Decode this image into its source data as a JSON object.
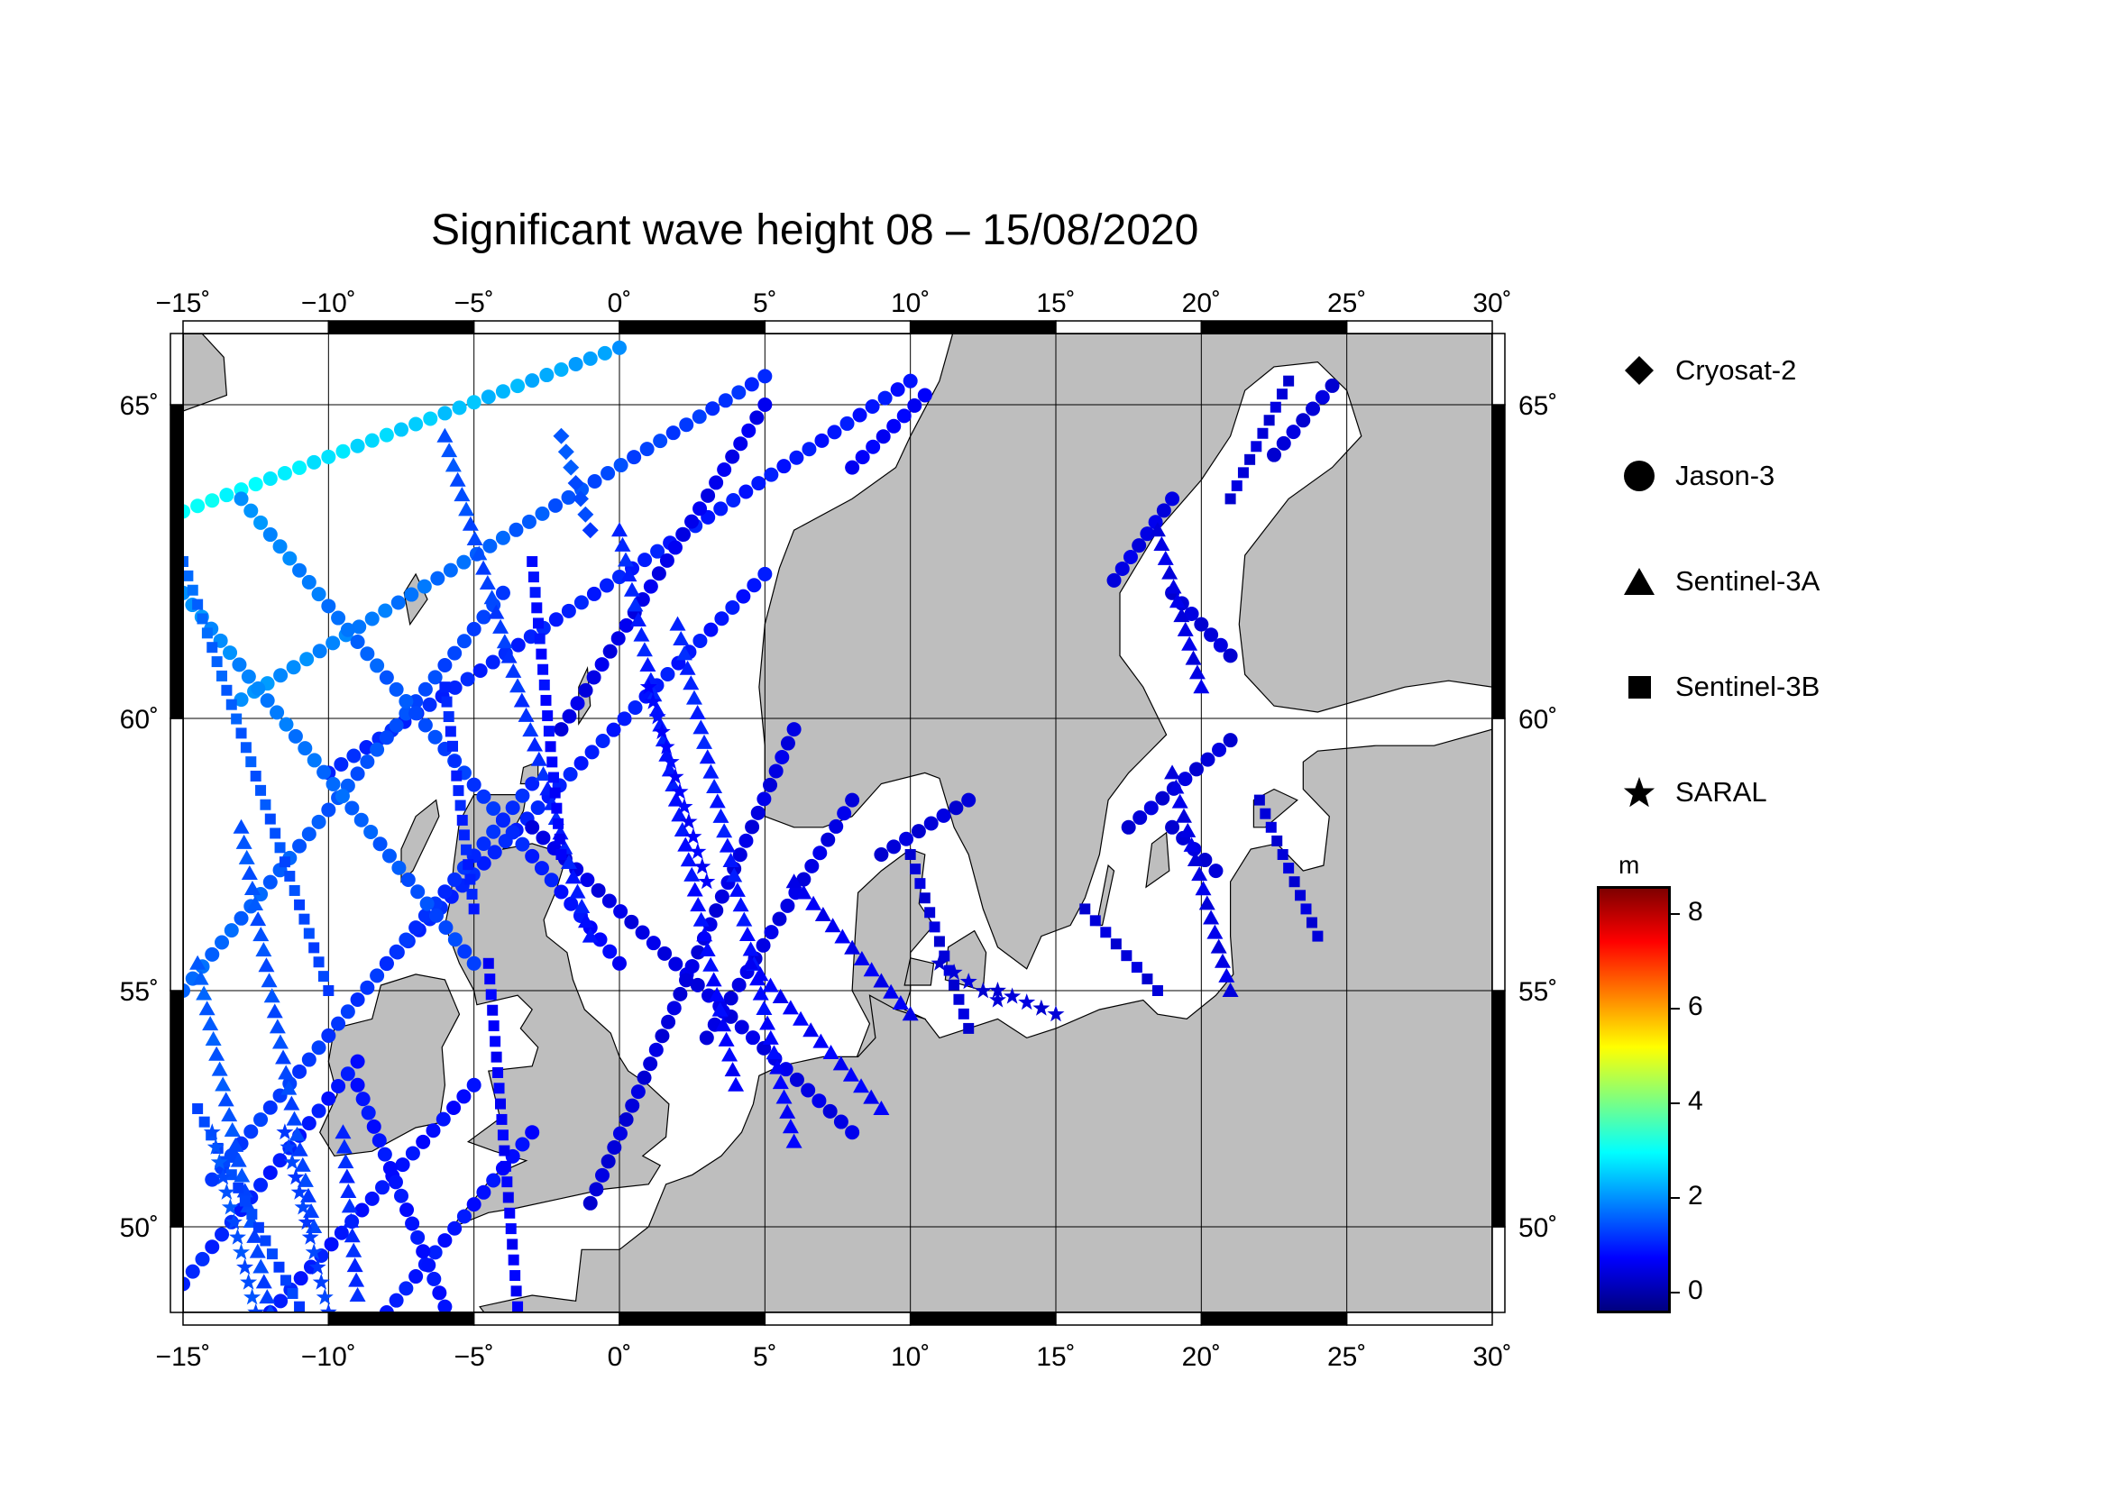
{
  "title": "Significant wave height 08 – 15/08/2020",
  "map": {
    "lon_ticks": [
      -15,
      -10,
      -5,
      0,
      5,
      10,
      15,
      20,
      25,
      30
    ],
    "lat_ticks": [
      50,
      55,
      60,
      65
    ],
    "lon_labels": [
      "−15˚",
      "−10˚",
      "−5˚",
      "0˚",
      "5˚",
      "10˚",
      "15˚",
      "20˚",
      "25˚",
      "30˚"
    ],
    "lat_labels": [
      "50˚",
      "55˚",
      "60˚",
      "65˚"
    ],
    "lon_range": [
      -15,
      30
    ],
    "lat_range": [
      48.5,
      66.5
    ],
    "land_color": "#bebebe",
    "sea_color": "#ffffff"
  },
  "legend": {
    "items": [
      {
        "label": "Cryosat-2",
        "symbol": "diamond"
      },
      {
        "label": "Jason-3",
        "symbol": "circle"
      },
      {
        "label": "Sentinel-3A",
        "symbol": "triangle"
      },
      {
        "label": "Sentinel-3B",
        "symbol": "square"
      },
      {
        "label": "SARAL",
        "symbol": "star"
      }
    ]
  },
  "colorbar": {
    "unit": "m",
    "ticks": [
      "8",
      "6",
      "4",
      "2",
      "0"
    ],
    "range": [
      -0.5,
      8.6
    ],
    "colors": [
      "#00007f",
      "#0000ff",
      "#007fff",
      "#00ffff",
      "#7fff7f",
      "#ffff00",
      "#ff7f00",
      "#ff0000",
      "#7f0000"
    ]
  },
  "chart_data": {
    "type": "scatter",
    "title": "Significant wave height 08 – 15/08/2020",
    "xlabel": "",
    "ylabel": "",
    "xlim": [
      -15,
      30
    ],
    "ylim": [
      48.5,
      66.5
    ],
    "color_scale": {
      "unit": "m",
      "min": 0,
      "max": 8
    },
    "series": [
      {
        "name": "Jason-3",
        "marker": "circle",
        "tracks": [
          {
            "start": [
              -15,
              63.3
            ],
            "end": [
              0,
              66.2
            ],
            "hs_start": 3.0,
            "hs_end": 2.0
          },
          {
            "start": [
              -13,
              60.3
            ],
            "end": [
              5,
              65.6
            ],
            "hs_start": 2.0,
            "hs_end": 1.0
          },
          {
            "start": [
              -10,
              59.0
            ],
            "end": [
              10,
              65.5
            ],
            "hs_start": 1.0,
            "hs_end": 0.8
          },
          {
            "start": [
              -8,
              55.5
            ],
            "end": [
              5,
              62.3
            ],
            "hs_start": 1.0,
            "hs_end": 0.8
          },
          {
            "start": [
              -15,
              55.0
            ],
            "end": [
              -4,
              62.0
            ],
            "hs_start": 1.6,
            "hs_end": 1.2
          },
          {
            "start": [
              -14,
              51.0
            ],
            "end": [
              -3,
              58.8
            ],
            "hs_start": 1.2,
            "hs_end": 1.0
          },
          {
            "start": [
              -15,
              62.0
            ],
            "end": [
              -5,
              55.5
            ],
            "hs_start": 2.0,
            "hs_end": 1.2
          },
          {
            "start": [
              -13,
              63.5
            ],
            "end": [
              0,
              55.5
            ],
            "hs_start": 2.0,
            "hs_end": 0.6
          },
          {
            "start": [
              -3,
              58.0
            ],
            "end": [
              8,
              52.0
            ],
            "hs_start": 0.4,
            "hs_end": 0.4
          },
          {
            "start": [
              -2,
              59.8
            ],
            "end": [
              5,
              65.0
            ],
            "hs_start": 0.4,
            "hs_end": 0.5
          },
          {
            "start": [
              3,
              54.0
            ],
            "end": [
              8,
              58.5
            ],
            "hs_start": 0.4,
            "hs_end": 0.4
          },
          {
            "start": [
              -1,
              50.5
            ],
            "end": [
              6,
              59.8
            ],
            "hs_start": 0.3,
            "hs_end": 0.4
          },
          {
            "start": [
              -15,
              49.0
            ],
            "end": [
              -9,
              53.5
            ],
            "hs_start": 1.0,
            "hs_end": 0.8
          },
          {
            "start": [
              -12,
              48.5
            ],
            "end": [
              -5,
              53.0
            ],
            "hs_start": 0.9,
            "hs_end": 0.7
          },
          {
            "start": [
              -8,
              48.5
            ],
            "end": [
              -3,
              52.0
            ],
            "hs_start": 0.9,
            "hs_end": 0.7
          },
          {
            "start": [
              -9,
              53.0
            ],
            "end": [
              -6,
              48.6
            ],
            "hs_start": 0.8,
            "hs_end": 0.8
          },
          {
            "start": [
              9,
              57.5
            ],
            "end": [
              12,
              58.5
            ],
            "hs_start": 0.3,
            "hs_end": 0.3
          },
          {
            "start": [
              17,
              62.2
            ],
            "end": [
              19,
              63.5
            ],
            "hs_start": 0.4,
            "hs_end": 0.4
          },
          {
            "start": [
              19,
              62.0
            ],
            "end": [
              21,
              61.0
            ],
            "hs_start": 0.3,
            "hs_end": 0.3
          },
          {
            "start": [
              22.5,
              64.2
            ],
            "end": [
              24.5,
              65.4
            ],
            "hs_start": 0.3,
            "hs_end": 0.3
          },
          {
            "start": [
              17.5,
              58.0
            ],
            "end": [
              21,
              59.6
            ],
            "hs_start": 0.3,
            "hs_end": 0.3
          },
          {
            "start": [
              19,
              58.0
            ],
            "end": [
              20.5,
              57.2
            ],
            "hs_start": 0.3,
            "hs_end": 0.3
          },
          {
            "start": [
              8,
              64.0
            ],
            "end": [
              10.5,
              65.2
            ],
            "hs_start": 0.6,
            "hs_end": 0.6
          }
        ]
      },
      {
        "name": "Sentinel-3A",
        "marker": "triangle",
        "tracks": [
          {
            "start": [
              -14.5,
              55.5
            ],
            "end": [
              -12,
              48.5
            ],
            "hs_start": 1.5,
            "hs_end": 1.2
          },
          {
            "start": [
              -13,
              58.0
            ],
            "end": [
              -10.5,
              50.0
            ],
            "hs_start": 1.4,
            "hs_end": 1.2
          },
          {
            "start": [
              -6,
              64.5
            ],
            "end": [
              -1,
              56.0
            ],
            "hs_start": 1.4,
            "hs_end": 0.8
          },
          {
            "start": [
              0,
              63.0
            ],
            "end": [
              4,
              53.0
            ],
            "hs_start": 1.0,
            "hs_end": 0.6
          },
          {
            "start": [
              2,
              61.5
            ],
            "end": [
              6,
              51.8
            ],
            "hs_start": 1.0,
            "hs_end": 0.6
          },
          {
            "start": [
              4.5,
              55.5
            ],
            "end": [
              9,
              52.5
            ],
            "hs_start": 0.6,
            "hs_end": 0.6
          },
          {
            "start": [
              6,
              57.0
            ],
            "end": [
              10,
              54.5
            ],
            "hs_start": 0.5,
            "hs_end": 0.5
          },
          {
            "start": [
              -9.5,
              52.0
            ],
            "end": [
              -9,
              48.8
            ],
            "hs_start": 1.0,
            "hs_end": 1.0
          },
          {
            "start": [
              18.5,
              63.0
            ],
            "end": [
              20,
              60.5
            ],
            "hs_start": 0.4,
            "hs_end": 0.4
          },
          {
            "start": [
              19,
              59.0
            ],
            "end": [
              21,
              55.0
            ],
            "hs_start": 0.4,
            "hs_end": 0.4
          }
        ]
      },
      {
        "name": "Sentinel-3B",
        "marker": "square",
        "tracks": [
          {
            "start": [
              -15,
              62.5
            ],
            "end": [
              -10,
              55.0
            ],
            "hs_start": 1.6,
            "hs_end": 1.2
          },
          {
            "start": [
              -14.5,
              52.5
            ],
            "end": [
              -11,
              48.6
            ],
            "hs_start": 1.3,
            "hs_end": 1.2
          },
          {
            "start": [
              -4.5,
              55.5
            ],
            "end": [
              -3.5,
              48.6
            ],
            "hs_start": 0.6,
            "hs_end": 0.6
          },
          {
            "start": [
              -3,
              62.5
            ],
            "end": [
              -2,
              57.5
            ],
            "hs_start": 0.8,
            "hs_end": 0.6
          },
          {
            "start": [
              -6,
              60.5
            ],
            "end": [
              -5,
              56.5
            ],
            "hs_start": 1.0,
            "hs_end": 0.9
          },
          {
            "start": [
              10,
              57.5
            ],
            "end": [
              12,
              54.2
            ],
            "hs_start": 0.3,
            "hs_end": 0.3
          },
          {
            "start": [
              16,
              56.5
            ],
            "end": [
              18.5,
              55.0
            ],
            "hs_start": 0.3,
            "hs_end": 0.3
          },
          {
            "start": [
              22,
              58.5
            ],
            "end": [
              24,
              56.0
            ],
            "hs_start": 0.3,
            "hs_end": 0.3
          },
          {
            "start": [
              23,
              65.5
            ],
            "end": [
              21,
              63.5
            ],
            "hs_start": 0.3,
            "hs_end": 0.3
          }
        ]
      },
      {
        "name": "SARAL",
        "marker": "star",
        "tracks": [
          {
            "start": [
              -14,
              52.0
            ],
            "end": [
              -12.5,
              48.5
            ],
            "hs_start": 1.4,
            "hs_end": 1.3
          },
          {
            "start": [
              -11.5,
              52.0
            ],
            "end": [
              -10,
              48.5
            ],
            "hs_start": 1.2,
            "hs_end": 1.2
          },
          {
            "start": [
              1,
              60.5
            ],
            "end": [
              3,
              57.0
            ],
            "hs_start": 0.7,
            "hs_end": 0.6
          },
          {
            "start": [
              13,
              55.0
            ],
            "end": [
              15,
              54.5
            ],
            "hs_start": 0.3,
            "hs_end": 0.3
          },
          {
            "start": [
              11,
              55.5
            ],
            "end": [
              13,
              54.8
            ],
            "hs_start": 0.3,
            "hs_end": 0.3
          }
        ]
      },
      {
        "name": "Cryosat-2",
        "marker": "diamond",
        "tracks": [
          {
            "start": [
              -2,
              64.5
            ],
            "end": [
              -1,
              63.0
            ],
            "hs_start": 1.5,
            "hs_end": 1.2
          }
        ]
      }
    ]
  }
}
